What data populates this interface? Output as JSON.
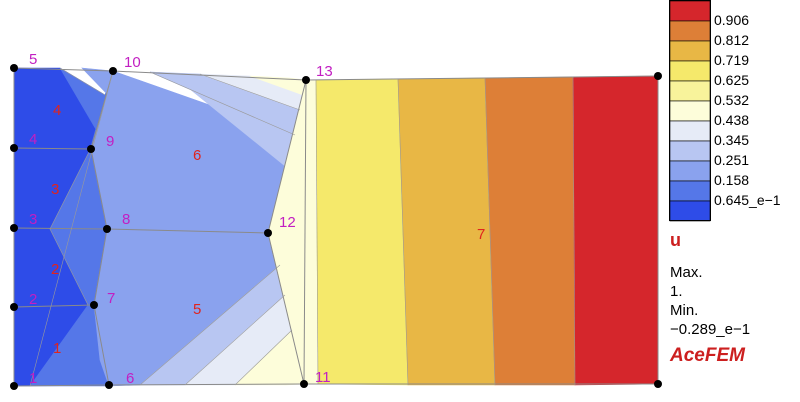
{
  "colors": {
    "levels": [
      "#2e4ce8",
      "#5577e8",
      "#8aa2ee",
      "#b8c6f2",
      "#e6ebf7",
      "#fdfdda",
      "#f8f39b",
      "#f5e96b",
      "#e8b745",
      "#dd7f37",
      "#d5262c"
    ]
  },
  "legend": {
    "field": "u",
    "ticks": [
      "0.906",
      "0.812",
      "0.719",
      "0.625",
      "0.532",
      "0.438",
      "0.345",
      "0.251",
      "0.158",
      "0.645_e−1"
    ]
  },
  "info": {
    "max_label": "Max.",
    "max_value": "1.",
    "min_label": "Min.",
    "min_value": "−0.289_e−1",
    "brand": "AceFEM"
  },
  "nodes": [
    {
      "id": "1",
      "label": "1"
    },
    {
      "id": "2",
      "label": "2"
    },
    {
      "id": "3",
      "label": "3"
    },
    {
      "id": "4",
      "label": "4"
    },
    {
      "id": "5",
      "label": "5"
    },
    {
      "id": "6",
      "label": "6"
    },
    {
      "id": "7",
      "label": "7"
    },
    {
      "id": "8",
      "label": "8"
    },
    {
      "id": "9",
      "label": "9"
    },
    {
      "id": "10",
      "label": "10"
    },
    {
      "id": "11",
      "label": "11"
    },
    {
      "id": "12",
      "label": "12"
    },
    {
      "id": "13",
      "label": "13"
    }
  ],
  "elements": [
    {
      "id": "1",
      "label": "1"
    },
    {
      "id": "2",
      "label": "2"
    },
    {
      "id": "3",
      "label": "3"
    },
    {
      "id": "4",
      "label": "4"
    },
    {
      "id": "5",
      "label": "5"
    },
    {
      "id": "6",
      "label": "6"
    },
    {
      "id": "7",
      "label": "7"
    }
  ]
}
